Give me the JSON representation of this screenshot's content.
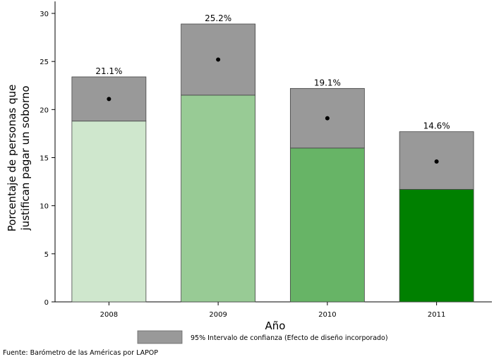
{
  "chart_data": {
    "type": "bar",
    "title": "",
    "xlabel": "Año",
    "ylabel": [
      "Porcentaje de personas que",
      "justifican pagar un soborno"
    ],
    "ylim": [
      0,
      30
    ],
    "yticks": [
      0,
      5,
      10,
      15,
      20,
      25,
      30
    ],
    "categories": [
      "2008",
      "2009",
      "2010",
      "2011"
    ],
    "values": [
      21.1,
      25.2,
      19.1,
      14.6
    ],
    "value_labels": [
      "21.1%",
      "25.2%",
      "19.1%",
      "14.6%"
    ],
    "ci_lower": [
      18.8,
      21.5,
      16.0,
      11.7
    ],
    "ci_upper": [
      23.4,
      28.9,
      22.2,
      17.7
    ],
    "bar_colors": [
      "#cfe7cd",
      "#98cb95",
      "#67b466",
      "#008000"
    ],
    "ci_color": "#999999",
    "legend": {
      "label": "95% Intervalo de confianza (Efecto de diseño incorporado)",
      "position": "bottom"
    },
    "source": "Fuente: Barómetro de las Américas por LAPOP"
  }
}
